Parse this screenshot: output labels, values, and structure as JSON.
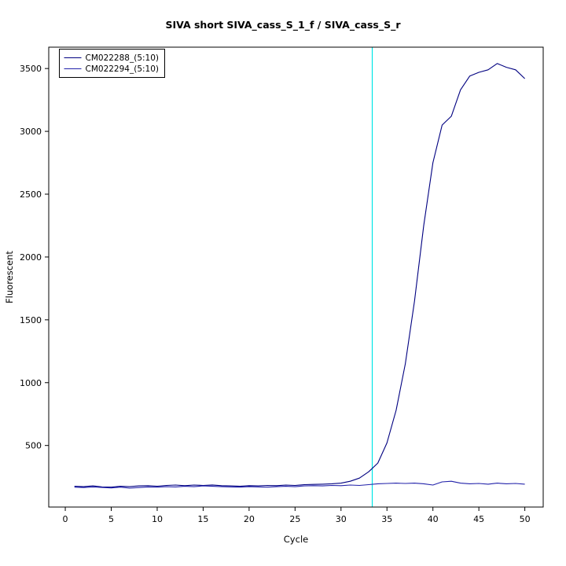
{
  "chart_data": {
    "type": "line",
    "title": "SIVA short SIVA_cass_S_1_f / SIVA_cass_S_r",
    "xlabel": "Cycle",
    "ylabel": "Fluorescent",
    "xlim": [
      -1.8,
      52
    ],
    "ylim": [
      10,
      3670
    ],
    "x_ticks": [
      0,
      5,
      10,
      15,
      20,
      25,
      30,
      35,
      40,
      45,
      50
    ],
    "y_ticks": [
      500,
      1000,
      1500,
      2000,
      2500,
      3000,
      3500
    ],
    "grid": false,
    "legend_position": "top-left",
    "threshold_line": {
      "x": 33.4,
      "color": "#00e5e5"
    },
    "x": [
      1,
      2,
      3,
      4,
      5,
      6,
      7,
      8,
      9,
      10,
      11,
      12,
      13,
      14,
      15,
      16,
      17,
      18,
      19,
      20,
      21,
      22,
      23,
      24,
      25,
      26,
      27,
      28,
      29,
      30,
      31,
      32,
      33,
      34,
      35,
      36,
      37,
      38,
      39,
      40,
      41,
      42,
      43,
      44,
      45,
      46,
      47,
      48,
      49,
      50
    ],
    "series": [
      {
        "name": "CM022288_(5:10)",
        "color": "#000080",
        "values": [
          175,
          172,
          178,
          170,
          168,
          175,
          172,
          178,
          180,
          176,
          182,
          185,
          180,
          185,
          182,
          186,
          180,
          178,
          175,
          180,
          178,
          182,
          180,
          185,
          182,
          188,
          190,
          192,
          195,
          200,
          215,
          240,
          290,
          360,
          520,
          780,
          1150,
          1650,
          2250,
          2750,
          3050,
          3120,
          3330,
          3440,
          3470,
          3490,
          3540,
          3510,
          3490,
          3420
        ]
      },
      {
        "name": "CM022294_(5:10)",
        "color": "#2222aa",
        "values": [
          168,
          165,
          170,
          166,
          162,
          168,
          160,
          165,
          170,
          168,
          172,
          170,
          175,
          172,
          178,
          175,
          172,
          170,
          168,
          172,
          170,
          168,
          172,
          175,
          172,
          178,
          180,
          178,
          182,
          180,
          185,
          182,
          188,
          195,
          198,
          200,
          198,
          200,
          195,
          185,
          210,
          215,
          200,
          195,
          198,
          192,
          200,
          195,
          198,
          192
        ]
      }
    ]
  }
}
